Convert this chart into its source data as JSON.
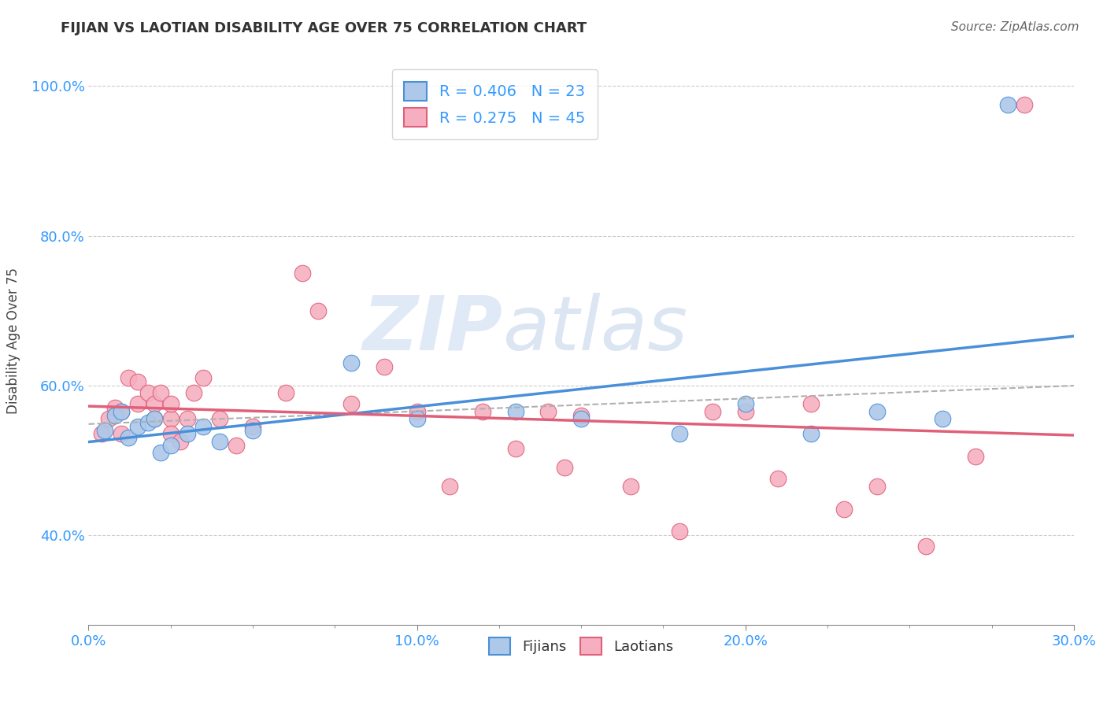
{
  "title": "FIJIAN VS LAOTIAN DISABILITY AGE OVER 75 CORRELATION CHART",
  "source": "Source: ZipAtlas.com",
  "ylabel": "Disability Age Over 75",
  "legend_label1": "Fijians",
  "legend_label2": "Laotians",
  "R1": 0.406,
  "N1": 23,
  "R2": 0.275,
  "N2": 45,
  "fijian_color": "#adc8e8",
  "laotian_color": "#f5afc0",
  "fijian_line_color": "#4a90d9",
  "laotian_line_color": "#e0607a",
  "xlim": [
    0.0,
    0.3
  ],
  "ylim": [
    0.28,
    1.04
  ],
  "xticks": [
    0.0,
    0.025,
    0.05,
    0.075,
    0.1,
    0.125,
    0.15,
    0.175,
    0.2,
    0.225,
    0.25,
    0.275,
    0.3
  ],
  "xtick_major": [
    0.0,
    0.1,
    0.2,
    0.3
  ],
  "xtick_labels": [
    "0.0%",
    "10.0%",
    "20.0%",
    "30.0%"
  ],
  "ytick_major": [
    0.4,
    0.6,
    0.8,
    1.0
  ],
  "ytick_labels": [
    "40.0%",
    "60.0%",
    "80.0%",
    "100.0%"
  ],
  "fijian_x": [
    0.005,
    0.008,
    0.01,
    0.012,
    0.015,
    0.018,
    0.02,
    0.022,
    0.025,
    0.03,
    0.035,
    0.04,
    0.05,
    0.08,
    0.1,
    0.13,
    0.15,
    0.18,
    0.2,
    0.22,
    0.24,
    0.26,
    0.28
  ],
  "fijian_y": [
    0.54,
    0.56,
    0.565,
    0.53,
    0.545,
    0.55,
    0.555,
    0.51,
    0.52,
    0.535,
    0.545,
    0.525,
    0.54,
    0.63,
    0.555,
    0.565,
    0.555,
    0.535,
    0.575,
    0.535,
    0.565,
    0.555,
    0.975
  ],
  "laotian_x": [
    0.004,
    0.006,
    0.008,
    0.01,
    0.01,
    0.012,
    0.015,
    0.015,
    0.018,
    0.02,
    0.02,
    0.022,
    0.025,
    0.025,
    0.025,
    0.028,
    0.03,
    0.032,
    0.035,
    0.04,
    0.045,
    0.05,
    0.06,
    0.065,
    0.07,
    0.08,
    0.09,
    0.1,
    0.11,
    0.12,
    0.13,
    0.14,
    0.145,
    0.15,
    0.165,
    0.18,
    0.19,
    0.2,
    0.21,
    0.22,
    0.23,
    0.24,
    0.255,
    0.27,
    0.285
  ],
  "laotian_y": [
    0.535,
    0.555,
    0.57,
    0.565,
    0.535,
    0.61,
    0.575,
    0.605,
    0.59,
    0.555,
    0.575,
    0.59,
    0.555,
    0.535,
    0.575,
    0.525,
    0.555,
    0.59,
    0.61,
    0.555,
    0.52,
    0.545,
    0.59,
    0.75,
    0.7,
    0.575,
    0.625,
    0.565,
    0.465,
    0.565,
    0.515,
    0.565,
    0.49,
    0.56,
    0.465,
    0.405,
    0.565,
    0.565,
    0.475,
    0.575,
    0.435,
    0.465,
    0.385,
    0.505,
    0.975
  ],
  "watermark_zip": "ZIP",
  "watermark_atlas": "atlas",
  "background_color": "#ffffff",
  "grid_color": "#cccccc",
  "grid_style": "--"
}
